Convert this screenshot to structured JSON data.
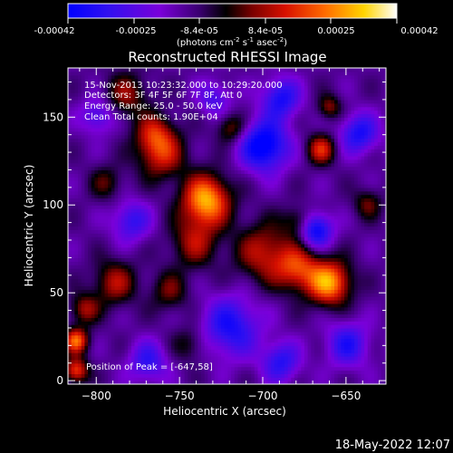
{
  "colorbar": {
    "ticks": [
      "-0.00042",
      "-0.00025",
      "-8.4e-05",
      "8.4e-05",
      "0.00025",
      "0.00042"
    ],
    "unit_label": "(photons cm",
    "unit_sup1": "-2",
    "unit_mid": " s",
    "unit_sup2": "-1",
    "unit_end": " asec",
    "unit_sup3": "-2",
    "unit_close": ")"
  },
  "chart_data": {
    "type": "heatmap",
    "title": "Reconstructed RHESSI Image",
    "xlabel": "Heliocentric X (arcsec)",
    "ylabel": "Heliocentric Y (arcsec)",
    "xlim": [
      -817,
      -626
    ],
    "ylim": [
      -2,
      178
    ],
    "xticks": [
      -800,
      -750,
      -700,
      -650
    ],
    "yticks": [
      0,
      50,
      100,
      150
    ],
    "color_range": [
      -0.00042,
      0.00042
    ],
    "colormap": [
      "#0000ff",
      "#7a00d9",
      "#000000",
      "#b40000",
      "#ff5a00",
      "#ffd400",
      "#ffffff"
    ],
    "blobs": [
      {
        "x": -735,
        "y": 102,
        "s": 10,
        "a": 0.00042
      },
      {
        "x": -661,
        "y": 55,
        "s": 9,
        "a": 0.0004
      },
      {
        "x": -742,
        "y": 78,
        "s": 10,
        "a": 0.0002
      },
      {
        "x": -700,
        "y": 72,
        "s": 12,
        "a": 0.00023
      },
      {
        "x": -680,
        "y": 63,
        "s": 9,
        "a": 0.00026
      },
      {
        "x": -783,
        "y": 162,
        "s": 9,
        "a": 0.00018
      },
      {
        "x": -762,
        "y": 128,
        "s": 10,
        "a": 0.00024
      },
      {
        "x": -766,
        "y": 140,
        "s": 8,
        "a": 0.0002
      },
      {
        "x": -790,
        "y": 55,
        "s": 9,
        "a": 0.00021
      },
      {
        "x": -808,
        "y": 40,
        "s": 6,
        "a": 0.0002
      },
      {
        "x": -813,
        "y": 22,
        "s": 5,
        "a": 0.00034
      },
      {
        "x": -813,
        "y": 5,
        "s": 5,
        "a": 0.0003
      },
      {
        "x": -666,
        "y": 131,
        "s": 6,
        "a": 0.00026
      },
      {
        "x": -661,
        "y": 155,
        "s": 5,
        "a": 0.00018
      },
      {
        "x": -720,
        "y": 143,
        "s": 6,
        "a": 0.00018
      },
      {
        "x": -757,
        "y": 50,
        "s": 8,
        "a": 0.00015
      },
      {
        "x": -680,
        "y": 90,
        "s": 6,
        "a": 0.00015
      },
      {
        "x": -745,
        "y": 20,
        "s": 7,
        "a": 0.00012
      },
      {
        "x": -795,
        "y": 112,
        "s": 7,
        "a": 0.00013
      },
      {
        "x": -638,
        "y": 100,
        "s": 6,
        "a": 0.00015
      },
      {
        "x": -700,
        "y": 133,
        "s": 10,
        "a": -0.00035
      },
      {
        "x": -690,
        "y": 160,
        "s": 8,
        "a": -0.00025
      },
      {
        "x": -669,
        "y": 85,
        "s": 7,
        "a": -0.0003
      },
      {
        "x": -643,
        "y": 140,
        "s": 8,
        "a": -0.00025
      },
      {
        "x": -720,
        "y": 30,
        "s": 12,
        "a": -0.00025
      },
      {
        "x": -690,
        "y": 10,
        "s": 8,
        "a": -0.00022
      },
      {
        "x": -780,
        "y": 90,
        "s": 8,
        "a": -0.0002
      },
      {
        "x": -800,
        "y": 150,
        "s": 7,
        "a": -0.00018
      },
      {
        "x": -650,
        "y": 20,
        "s": 9,
        "a": -0.00022
      },
      {
        "x": -770,
        "y": 10,
        "s": 8,
        "a": -0.0002
      },
      {
        "x": -730,
        "y": 160,
        "s": 7,
        "a": -0.00016
      }
    ]
  },
  "annotations": {
    "time_range": "15-Nov-2013 10:23:32.000 to 10:29:20.000",
    "detectors": "Detectors: 3F 4F 5F 6F 7F 8F, Att 0",
    "energy": "Energy Range: 25.0 - 50.0 keV",
    "clean": "Clean    Total counts: 1.90E+04",
    "peak": "Position of Peak = [-647,58]"
  },
  "footer_timestamp": "18-May-2022 12:07"
}
